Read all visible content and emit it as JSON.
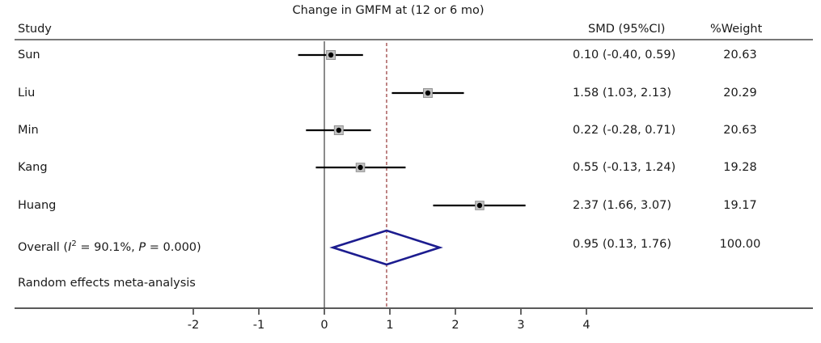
{
  "title": "Change in GMFM at (12 or 6 mo)",
  "columns": {
    "study": "Study",
    "smd": "SMD (95%CI)",
    "weight": "%Weight"
  },
  "overall_label": {
    "prefix": "Overall (",
    "i_symbol": "I",
    "i_sup": "2",
    "mid": " = 90.1%, ",
    "p_symbol": "P",
    "suffix": " = 0.000)"
  },
  "footer_note": "Random effects meta-analysis",
  "chart_data": {
    "type": "forest",
    "title": "Change in GMFM at (12 or 6 mo)",
    "x_ticks": [
      -2,
      -1,
      0,
      1,
      2,
      3,
      4
    ],
    "xlim": [
      -2.9,
      4.9
    ],
    "zero_line_x": 0,
    "overall_dashed_x": 0.95,
    "studies": [
      {
        "label": "Sun",
        "smd": 0.1,
        "ci_low": -0.4,
        "ci_high": 0.59,
        "smd_text": "0.10 (-0.40, 0.59)",
        "weight": 20.63,
        "weight_text": "20.63"
      },
      {
        "label": "Liu",
        "smd": 1.58,
        "ci_low": 1.03,
        "ci_high": 2.13,
        "smd_text": "1.58 (1.03, 2.13)",
        "weight": 20.29,
        "weight_text": "20.29"
      },
      {
        "label": "Min",
        "smd": 0.22,
        "ci_low": -0.28,
        "ci_high": 0.71,
        "smd_text": "0.22 (-0.28, 0.71)",
        "weight": 20.63,
        "weight_text": "20.63"
      },
      {
        "label": "Kang",
        "smd": 0.55,
        "ci_low": -0.13,
        "ci_high": 1.24,
        "smd_text": "0.55 (-0.13, 1.24)",
        "weight": 19.28,
        "weight_text": "19.28"
      },
      {
        "label": "Huang",
        "smd": 2.37,
        "ci_low": 1.66,
        "ci_high": 3.07,
        "smd_text": "2.37 (1.66, 3.07)",
        "weight": 19.17,
        "weight_text": "19.17"
      }
    ],
    "overall": {
      "smd": 0.95,
      "ci_low": 0.13,
      "ci_high": 1.76,
      "smd_text": "0.95 (0.13, 1.76)",
      "weight": 100.0,
      "weight_text": "100.00",
      "i_squared": "90.1%",
      "p_value": "0.000"
    },
    "model": "Random effects meta-analysis"
  },
  "colors": {
    "text": "#1a1a1a",
    "ci_line": "#000000",
    "marker_box_fill": "#c2c2c2",
    "marker_box_edge": "#8f8f8f",
    "point": "#000000",
    "zero_line": "#3c3c3c",
    "dashed_line": "#a35252",
    "diamond": "#1c1c8f",
    "rule": "#4a4a4a",
    "axis": "#5a5a5a"
  }
}
